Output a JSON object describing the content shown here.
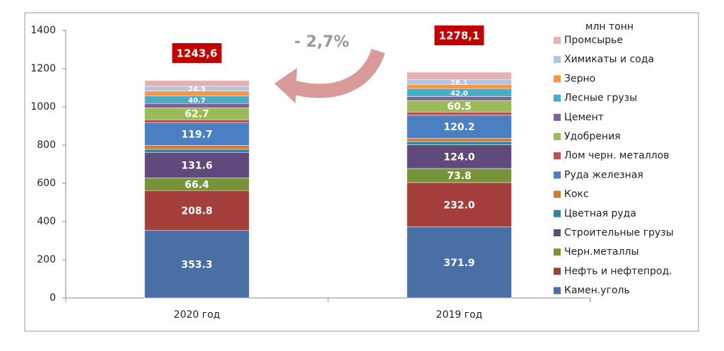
{
  "chart_data": {
    "type": "stacked_bar",
    "categories": [
      "2020 год",
      "2019 год"
    ],
    "unit_label": "млн тонн",
    "annotations": {
      "totals": [
        "1243,6",
        "1278,1"
      ],
      "change": "- 2,7%"
    },
    "ylim": [
      0,
      1400
    ],
    "yticks": [
      0,
      200,
      400,
      600,
      800,
      1000,
      1200,
      1400
    ],
    "series": [
      {
        "name": "Камен.уголь",
        "color": "#4a6fa5",
        "values": [
          353.3,
          371.9
        ],
        "value_labels": [
          "353.3",
          "371.9"
        ]
      },
      {
        "name": "Нефть и нефтепрод.",
        "color": "#a33e3b",
        "values": [
          208.8,
          232.0
        ],
        "value_labels": [
          "208.8",
          "232.0"
        ]
      },
      {
        "name": "Черн.металлы",
        "color": "#77933c",
        "values": [
          66.4,
          73.8
        ],
        "value_labels": [
          "66.4",
          "73.8"
        ]
      },
      {
        "name": "Строительные грузы",
        "color": "#604a7b",
        "values": [
          131.6,
          124.0
        ],
        "value_labels": [
          "131.6",
          "124.0"
        ]
      },
      {
        "name": "Цветная руда",
        "color": "#31859c",
        "values": [
          18,
          17
        ]
      },
      {
        "name": "Кокс",
        "color": "#d07a3a",
        "values": [
          20,
          17
        ]
      },
      {
        "name": "Руда железная",
        "color": "#4a7fc1",
        "values": [
          119.7,
          120.2
        ],
        "value_labels": [
          "119.7",
          "120.2"
        ]
      },
      {
        "name": "Лом черн. металлов",
        "color": "#c0504d",
        "values": [
          15,
          17
        ]
      },
      {
        "name": "Удобрения",
        "color": "#9bbb59",
        "values": [
          62.7,
          60.5
        ],
        "value_labels": [
          "62.7",
          "60.5"
        ]
      },
      {
        "name": "Цемент",
        "color": "#7d5ea0",
        "values": [
          22,
          20
        ]
      },
      {
        "name": "Лесные грузы",
        "color": "#4bacc6",
        "values": [
          40.7,
          42.0
        ],
        "value_labels": [
          "40.7",
          "42.0"
        ]
      },
      {
        "name": "Зерно",
        "color": "#f79646",
        "values": [
          25,
          22
        ]
      },
      {
        "name": "Химикаты и сода",
        "color": "#b3c4e0",
        "values": [
          24.5,
          26.1
        ],
        "value_labels": [
          "24.5",
          "26.1"
        ]
      },
      {
        "name": "Промсырье",
        "color": "#e6b0b0",
        "values": [
          30,
          38
        ]
      }
    ]
  }
}
